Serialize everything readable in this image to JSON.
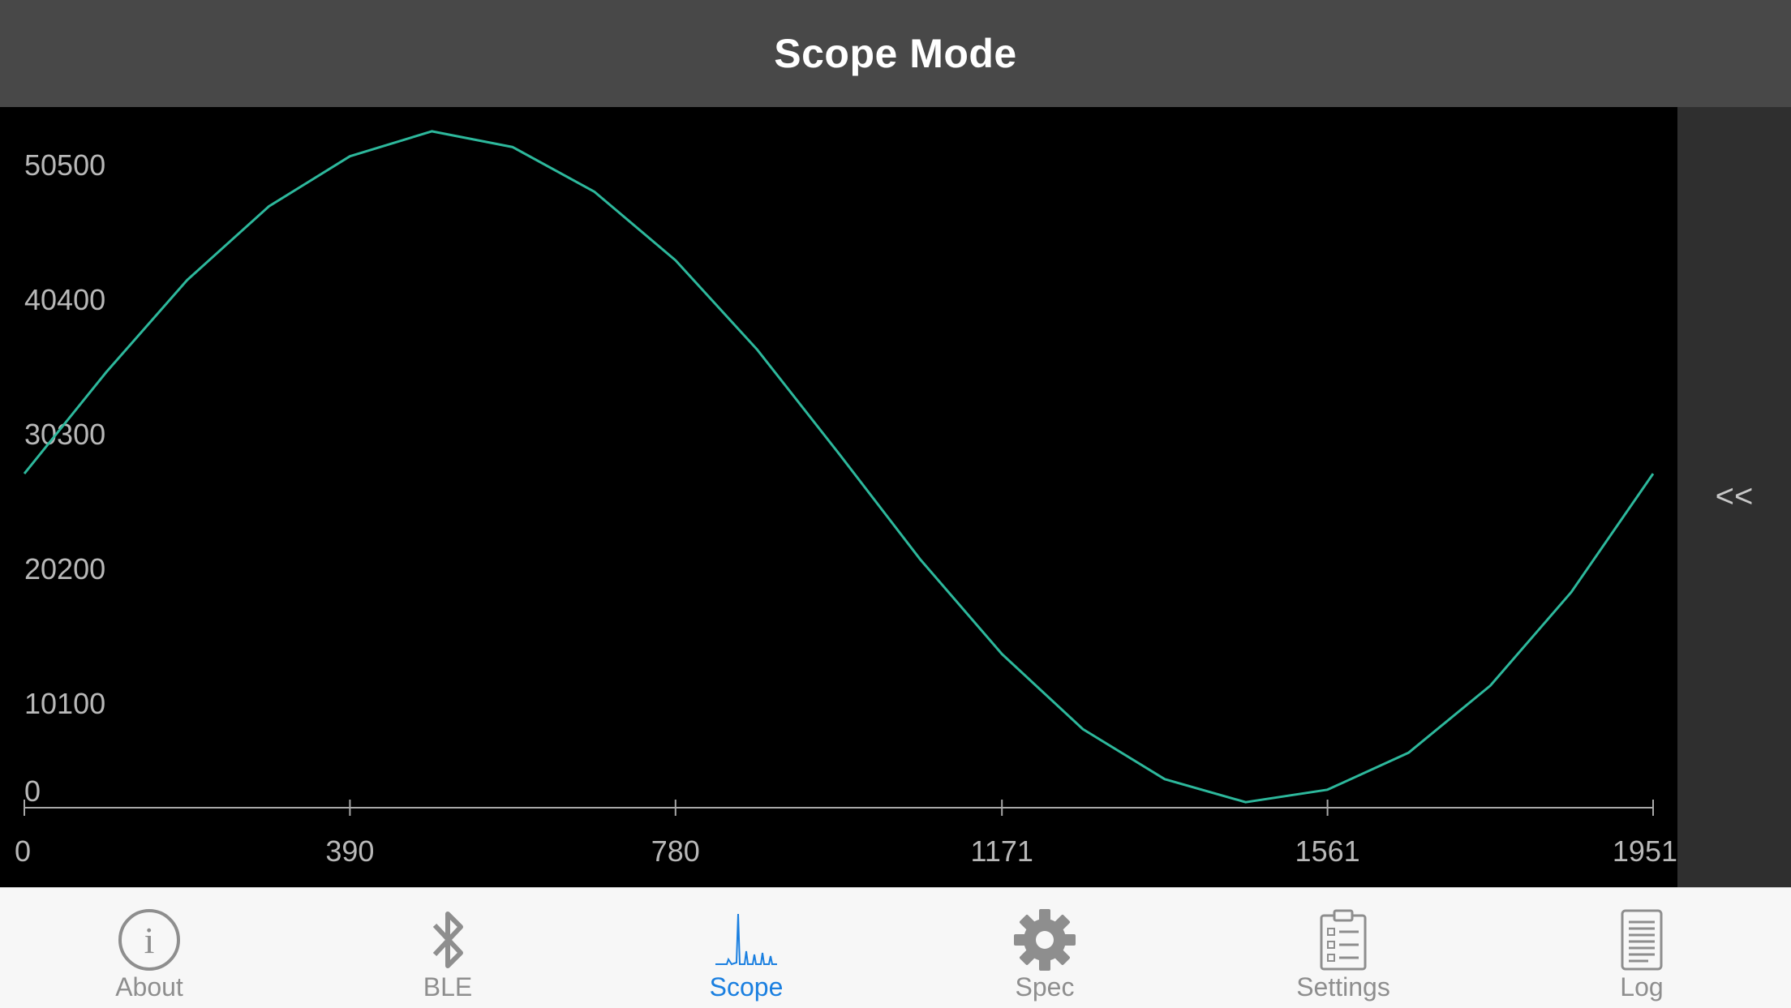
{
  "header": {
    "title": "Scope Mode"
  },
  "side_panel": {
    "collapse_label": "<<"
  },
  "tabs": [
    {
      "label": "About",
      "icon": "info-icon",
      "active": false
    },
    {
      "label": "BLE",
      "icon": "bluetooth-icon",
      "active": false
    },
    {
      "label": "Scope",
      "icon": "scope-icon",
      "active": true
    },
    {
      "label": "Spec",
      "icon": "gear-icon",
      "active": false
    },
    {
      "label": "Settings",
      "icon": "clipboard-icon",
      "active": false
    },
    {
      "label": "Log",
      "icon": "document-icon",
      "active": false
    }
  ],
  "colors": {
    "trace": "#2db89c",
    "active_tab": "#1a7fe0",
    "inactive_tab": "#8e8e8e",
    "header": "#484848"
  },
  "chart_data": {
    "type": "line",
    "title": "",
    "xlabel": "",
    "ylabel": "",
    "x_ticks": [
      "0",
      "390",
      "780",
      "1171",
      "1561",
      "1951"
    ],
    "y_ticks": [
      "50500",
      "40400",
      "30300",
      "20200",
      "10100",
      "0"
    ],
    "xlim": [
      0,
      1951
    ],
    "ylim": [
      0,
      50500
    ],
    "series": [
      {
        "x": [
          0,
          98,
          195,
          293,
          390,
          488,
          585,
          683,
          780,
          878,
          976,
          1073,
          1171,
          1268,
          1366,
          1463,
          1561,
          1658,
          1756,
          1853,
          1951
        ],
        "y": [
          25000,
          32700,
          39700,
          45300,
          49100,
          51000,
          49800,
          46400,
          41200,
          34400,
          26500,
          18500,
          11300,
          5600,
          1800,
          50,
          1000,
          3800,
          8900,
          16000,
          25000
        ]
      }
    ]
  }
}
